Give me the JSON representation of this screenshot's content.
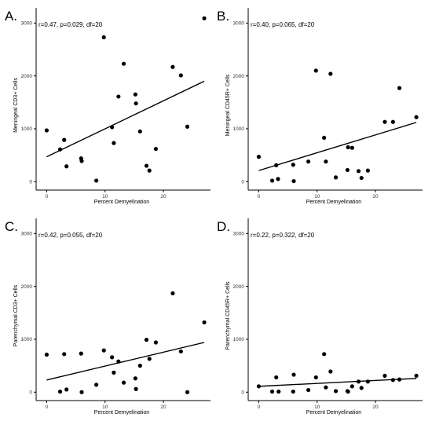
{
  "chart_data": [
    {
      "type": "scatter",
      "panel_label": "A.",
      "stat_label": "r=0.47, p=0.029, df=20",
      "xlabel": "Percent Demyelination",
      "ylabel": "Meningeal CD3+ Cells",
      "xlim": [
        0,
        27.5
      ],
      "ylim": [
        0,
        3000
      ],
      "x_ticks": [
        0,
        10,
        20
      ],
      "y_ticks": [
        0,
        1000,
        2000,
        3000
      ],
      "grid": false,
      "fit_line": [
        [
          0,
          470
        ],
        [
          27,
          1900
        ]
      ],
      "x": [
        0,
        2.3,
        3,
        3.4,
        5.9,
        6,
        8.5,
        9.8,
        11.2,
        11.5,
        12.3,
        13.2,
        15.2,
        15.3,
        16,
        17.1,
        17.6,
        18.7,
        21.6,
        23,
        24.1,
        27
      ],
      "y": [
        970,
        610,
        790,
        290,
        440,
        390,
        20,
        2730,
        1030,
        730,
        1610,
        2230,
        1650,
        1480,
        950,
        300,
        210,
        620,
        2170,
        2010,
        1040,
        3090
      ]
    },
    {
      "type": "scatter",
      "panel_label": "B.",
      "stat_label": "r=0.40, p=0.065, df=20",
      "xlabel": "Percent Demyelination",
      "ylabel": "Meningeal CD45R+ Cells",
      "xlim": [
        0,
        27.5
      ],
      "ylim": [
        0,
        3000
      ],
      "x_ticks": [
        0,
        10,
        20
      ],
      "y_ticks": [
        0,
        1000,
        2000,
        3000
      ],
      "grid": false,
      "fit_line": [
        [
          0,
          210
        ],
        [
          27,
          1120
        ]
      ],
      "x": [
        0,
        2.3,
        3,
        3.3,
        5.9,
        6,
        8.5,
        9.8,
        11.2,
        11.5,
        12.3,
        13.2,
        15.2,
        15.3,
        16,
        17.1,
        17.6,
        18.7,
        21.6,
        23,
        24.1,
        27
      ],
      "y": [
        470,
        20,
        310,
        50,
        320,
        10,
        380,
        2100,
        830,
        380,
        2040,
        80,
        220,
        650,
        640,
        200,
        70,
        210,
        1130,
        1130,
        1770,
        1220
      ]
    },
    {
      "type": "scatter",
      "panel_label": "C.",
      "stat_label": "r=0.42, p=0.055, df=20",
      "xlabel": "Percent Demyelination",
      "ylabel": "Parenchymal CD3+ Cells",
      "xlim": [
        0,
        27.5
      ],
      "ylim": [
        0,
        3000
      ],
      "x_ticks": [
        0,
        10,
        20
      ],
      "y_ticks": [
        0,
        1000,
        2000,
        3000
      ],
      "grid": false,
      "fit_line": [
        [
          0,
          230
        ],
        [
          27,
          940
        ]
      ],
      "x": [
        0,
        2.3,
        3,
        3.4,
        5.9,
        6,
        8.5,
        9.8,
        11.2,
        11.5,
        12.3,
        13.2,
        15.2,
        15.3,
        16,
        17.1,
        17.6,
        18.7,
        21.6,
        23,
        24.1,
        27
      ],
      "y": [
        710,
        10,
        720,
        50,
        730,
        0,
        140,
        790,
        660,
        370,
        580,
        180,
        260,
        60,
        500,
        990,
        630,
        940,
        1870,
        770,
        0,
        1320
      ]
    },
    {
      "type": "scatter",
      "panel_label": "D.",
      "stat_label": "r=0.22, p=0.322, df=20",
      "xlabel": "Percent Demyelination",
      "ylabel": "Parenchymal CD45R+ Cells",
      "xlim": [
        0,
        27.5
      ],
      "ylim": [
        0,
        3000
      ],
      "x_ticks": [
        0,
        10,
        20
      ],
      "y_ticks": [
        0,
        1000,
        2000,
        3000
      ],
      "grid": false,
      "fit_line": [
        [
          0,
          110
        ],
        [
          27,
          260
        ]
      ],
      "x": [
        0,
        2.3,
        3,
        3.4,
        5.9,
        6,
        8.5,
        9.8,
        11.2,
        11.5,
        12.3,
        13.2,
        15.2,
        15.3,
        16,
        17.1,
        17.6,
        18.7,
        21.6,
        23,
        24.1,
        27
      ],
      "y": [
        110,
        10,
        280,
        10,
        10,
        330,
        40,
        280,
        720,
        90,
        390,
        20,
        20,
        10,
        110,
        200,
        80,
        200,
        310,
        230,
        240,
        310
      ]
    }
  ]
}
